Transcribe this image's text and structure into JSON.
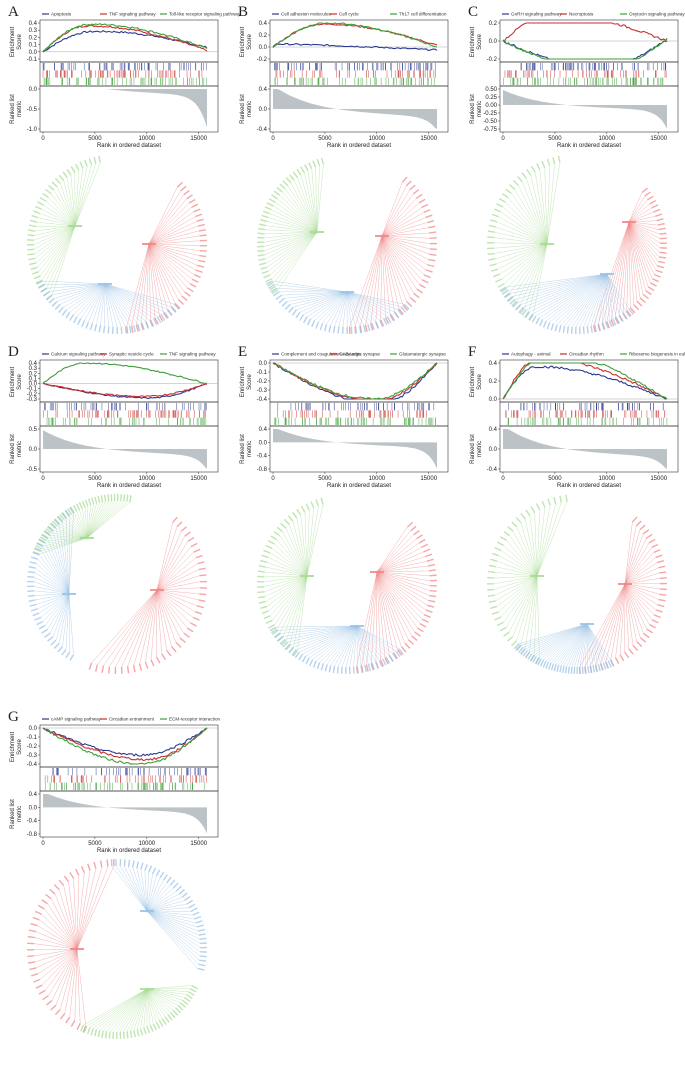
{
  "figure": {
    "panels": [
      {
        "letter": "A",
        "legend": [
          "Apoptosis",
          "TNF signaling pathway",
          "Toll-like receptor signaling pathway"
        ],
        "es_ticks": [
          "0.4",
          "0.3",
          "0.2",
          "0.1",
          "0.0",
          "-0.1"
        ],
        "rank_ticks": [
          "0.0",
          "-0.5",
          "-1.0"
        ]
      },
      {
        "letter": "B",
        "legend": [
          "Cell adhesion molecules",
          "Cell cycle",
          "Th17 cell differentiation"
        ],
        "es_ticks": [
          "0.4",
          "0.2",
          "0.0",
          "-0.2"
        ],
        "rank_ticks": [
          "0.4",
          "0.0",
          "-0.4"
        ]
      },
      {
        "letter": "C",
        "legend": [
          "GnRH signaling pathway",
          "Necroptosis",
          "Oxytocin signaling pathway"
        ],
        "es_ticks": [
          "0.2",
          "0.0",
          "-0.2"
        ],
        "rank_ticks": [
          "0.50",
          "0.25",
          "0.00",
          "-0.25",
          "-0.50",
          "-0.75"
        ]
      },
      {
        "letter": "D",
        "legend": [
          "Calcium signaling pathway",
          "Synaptic vesicle cycle",
          "TNF signaling pathway"
        ],
        "es_ticks": [
          "0.4",
          "0.3",
          "0.2",
          "0.1",
          "0.0",
          "-0.1",
          "-0.2",
          "-0.3"
        ],
        "rank_ticks": [
          "0.5",
          "0.0",
          "-0.5"
        ]
      },
      {
        "letter": "E",
        "legend": [
          "Complement and coagulation cascades",
          "GABAergic synapse",
          "Glutamatergic synapse"
        ],
        "es_ticks": [
          "0.0",
          "-0.1",
          "-0.2",
          "-0.3",
          "-0.4"
        ],
        "rank_ticks": [
          "0.4",
          "0.0",
          "-0.4",
          "-0.8"
        ]
      },
      {
        "letter": "F",
        "legend": [
          "Autophagy - animal",
          "Circadian rhythm",
          "Ribosome biogenesis in eukaryotes"
        ],
        "es_ticks": [
          "0.4",
          "0.2",
          "0.0"
        ],
        "rank_ticks": [
          "0.4",
          "0.0",
          "-0.4"
        ]
      },
      {
        "letter": "G",
        "legend": [
          "cAMP signaling pathway",
          "Circadian entrainment",
          "ECM-receptor interaction"
        ],
        "es_ticks": [
          "0.0",
          "-0.1",
          "-0.2",
          "-0.3",
          "-0.4"
        ],
        "rank_ticks": [
          "0.4",
          "0.0",
          "-0.4",
          "-0.8"
        ]
      }
    ],
    "x_ticks": [
      "0",
      "5000",
      "10000",
      "15000"
    ],
    "x_label": "Rank in ordered dataset",
    "es_label": [
      "Enrichment",
      "Score"
    ],
    "rank_label": [
      "Ranked list",
      "metric"
    ],
    "colors": {
      "series1": "#2b3a8f",
      "series2": "#c8302e",
      "series3": "#3f9e3a",
      "network_blue": "#9dc3e6",
      "network_red": "#f08a8a",
      "network_green": "#a9dc95",
      "metric_fill": "#bcc3c6"
    }
  }
}
